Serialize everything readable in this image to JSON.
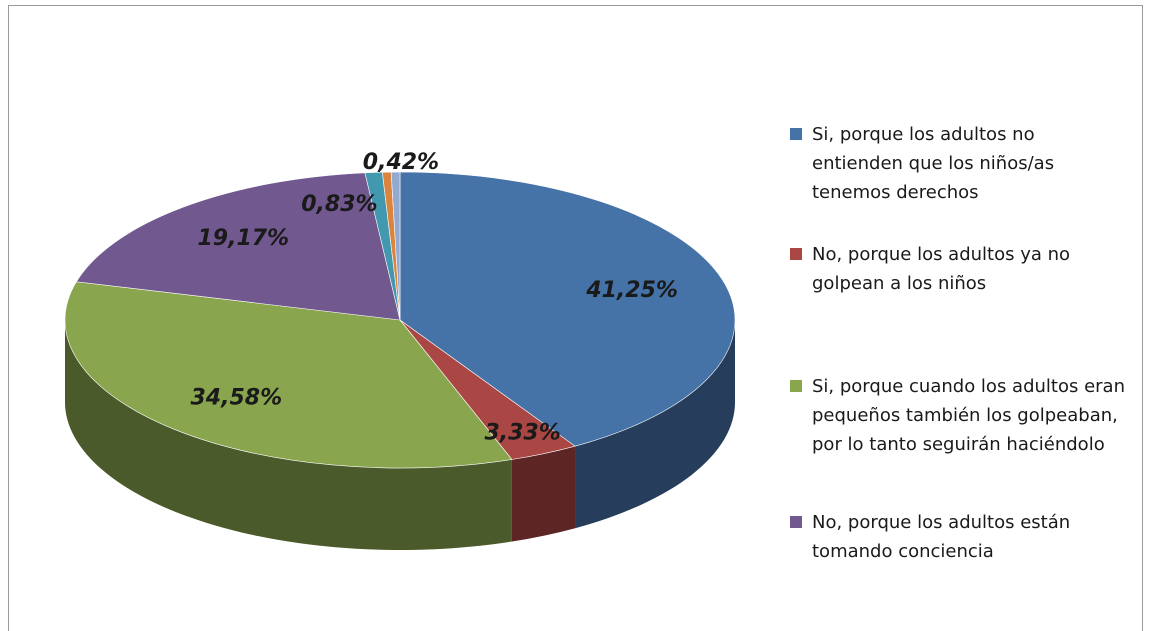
{
  "chart_data": {
    "type": "pie",
    "categories": [
      "Si, porque los adultos no entienden que los niños/as tenemos derechos",
      "No, porque los adultos ya no golpean a los niños",
      "Si, porque cuando los adultos eran pequeños también los golpeaban, por lo tanto seguirán haciéndolo",
      "No, porque los adultos están tomando conciencia",
      null,
      null,
      null
    ],
    "values": [
      41.25,
      3.33,
      34.58,
      19.17,
      0.83,
      0.42,
      0.42
    ],
    "value_labels": [
      "41,25%",
      "3,33%",
      "34,58%",
      "19,17%",
      "0,83%",
      "0,42%",
      null
    ],
    "colors": [
      "#4572a7",
      "#aa4643",
      "#89a54e",
      "#71588f",
      "#4198af",
      "#db843d",
      "#93a9cf"
    ]
  }
}
